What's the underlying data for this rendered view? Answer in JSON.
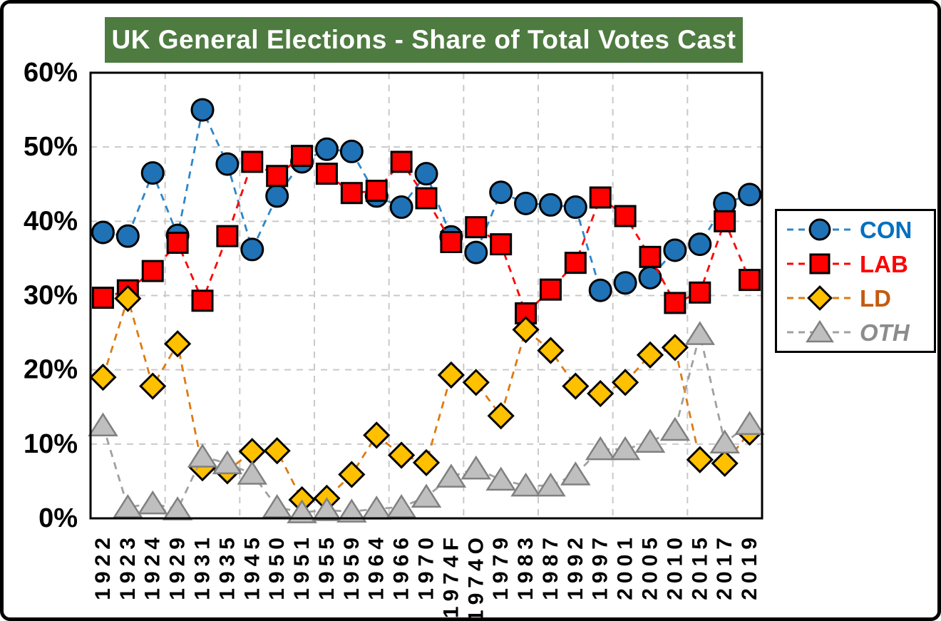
{
  "title": "UK General Elections - Share of Total Votes Cast",
  "colors": {
    "title_bg": "#4E7B40",
    "title_text": "#FFFFFF",
    "plot_bg": "#FFFFFF",
    "plot_border": "#000000",
    "frame_border": "#000000",
    "gridline": "#C9C9C9",
    "axis_label": "#000000"
  },
  "chart_data": {
    "type": "line",
    "title": "UK General Elections - Share of Total Votes Cast",
    "xlabel": "",
    "ylabel": "",
    "ylim": [
      0,
      60
    ],
    "y_tick_labels": [
      "0%",
      "10%",
      "20%",
      "30%",
      "40%",
      "50%",
      "60%"
    ],
    "grid": true,
    "legend_position": "right",
    "categories": [
      "1922",
      "1923",
      "1924",
      "1929",
      "1931",
      "1935",
      "1945",
      "1950",
      "1951",
      "1955",
      "1959",
      "1964",
      "1966",
      "1970",
      "1974F",
      "1974O",
      "1979",
      "1983",
      "1987",
      "1992",
      "1997",
      "2001",
      "2005",
      "2010",
      "2015",
      "2017",
      "2019"
    ],
    "series": [
      {
        "name": "CON",
        "marker": "circle",
        "marker_fill": "#1F72B5",
        "marker_edge": "#000000",
        "line_color": "#2E86C8",
        "label_color": "#0070C0",
        "italic": false,
        "values": [
          38.5,
          38.0,
          46.5,
          38.1,
          55.0,
          47.7,
          36.2,
          43.4,
          48.0,
          49.7,
          49.4,
          43.4,
          41.9,
          46.4,
          37.9,
          35.8,
          43.9,
          42.4,
          42.2,
          41.9,
          30.7,
          31.7,
          32.4,
          36.1,
          36.9,
          42.4,
          43.6
        ]
      },
      {
        "name": "LAB",
        "marker": "square",
        "marker_fill": "#FF0000",
        "marker_edge": "#000000",
        "line_color": "#FF0000",
        "label_color": "#FF0000",
        "italic": false,
        "values": [
          29.7,
          30.7,
          33.3,
          37.1,
          29.3,
          38.0,
          48.0,
          46.1,
          48.8,
          46.4,
          43.8,
          44.1,
          48.0,
          43.1,
          37.2,
          39.2,
          36.9,
          27.6,
          30.8,
          34.4,
          43.2,
          40.7,
          35.2,
          29.0,
          30.4,
          40.0,
          32.1
        ]
      },
      {
        "name": "LD",
        "marker": "diamond",
        "marker_fill": "#FFC000",
        "marker_edge": "#000000",
        "line_color": "#DD7B12",
        "label_color": "#C55A11",
        "italic": false,
        "values": [
          19.0,
          29.6,
          17.8,
          23.5,
          6.8,
          6.4,
          9.0,
          9.1,
          2.5,
          2.7,
          5.9,
          11.2,
          8.5,
          7.5,
          19.3,
          18.3,
          13.8,
          25.4,
          22.6,
          17.8,
          16.8,
          18.3,
          22.0,
          23.0,
          7.9,
          7.4,
          11.6
        ]
      },
      {
        "name": "OTH",
        "marker": "triangle",
        "marker_fill": "#BFBFBF",
        "marker_edge": "#808080",
        "line_color": "#A0A0A0",
        "label_color": "#8C8C8C",
        "italic": true,
        "values": [
          12.5,
          1.5,
          2.0,
          1.2,
          8.3,
          7.4,
          6.0,
          1.5,
          0.8,
          1.1,
          0.9,
          1.3,
          1.5,
          2.9,
          5.6,
          6.7,
          5.2,
          4.4,
          4.4,
          5.9,
          9.3,
          9.3,
          10.3,
          11.9,
          24.8,
          10.2,
          12.7
        ]
      }
    ]
  }
}
